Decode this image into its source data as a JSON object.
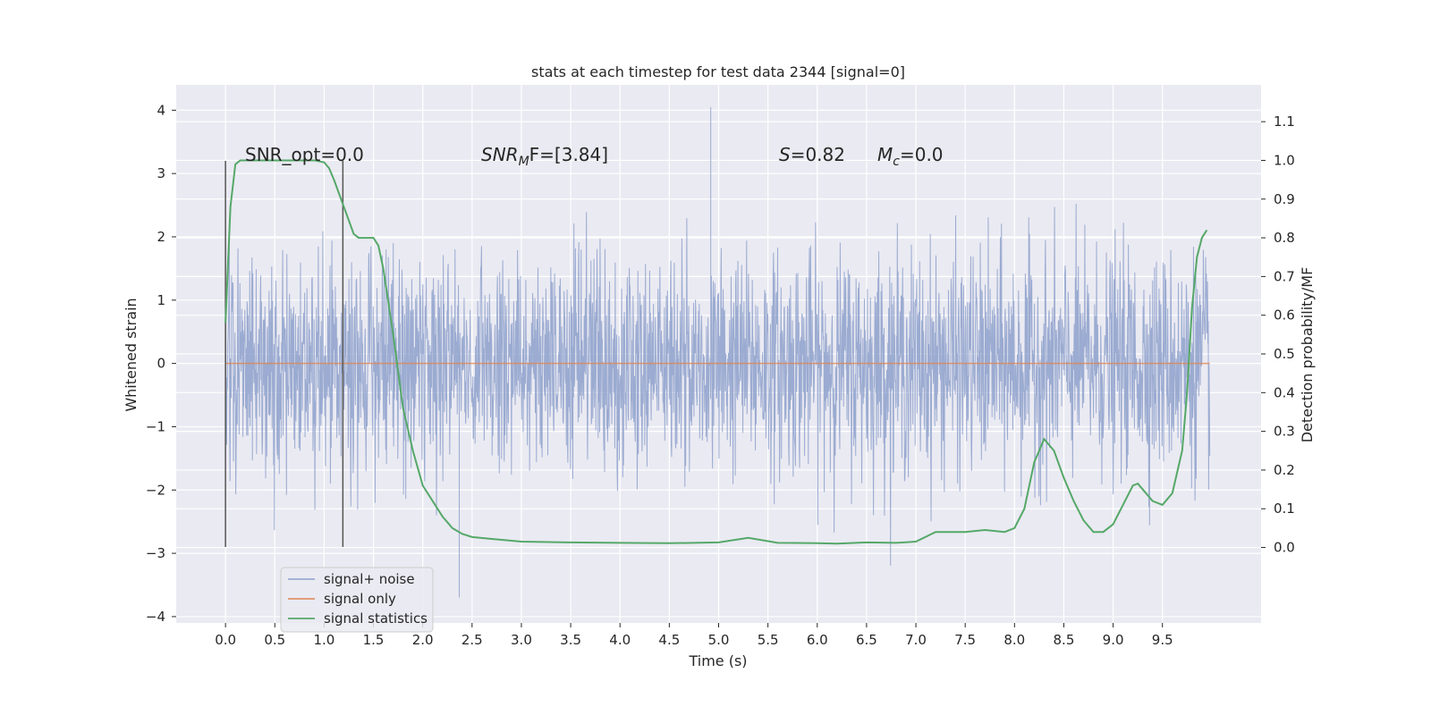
{
  "chart_data": {
    "type": "line",
    "title": "stats at each timestep for test data 2344 [signal=0]",
    "xlabel": "Time (s)",
    "ylabel_left": "Whitened strain",
    "ylabel_right": "Detection probability/MF",
    "xlim": [
      -0.5,
      10.5
    ],
    "ylim_left": [
      -4.1,
      4.4
    ],
    "ylim_right": [
      -0.195,
      1.195
    ],
    "x_ticks": [
      "0.0",
      "0.5",
      "1.0",
      "1.5",
      "2.0",
      "2.5",
      "3.0",
      "3.5",
      "4.0",
      "4.5",
      "5.0",
      "5.5",
      "6.0",
      "6.5",
      "7.0",
      "7.5",
      "8.0",
      "8.5",
      "9.0",
      "9.5"
    ],
    "y_left_ticks": [
      "−4",
      "−3",
      "−2",
      "−1",
      "0",
      "1",
      "2",
      "3",
      "4"
    ],
    "y_right_ticks": [
      "0.0",
      "0.1",
      "0.2",
      "0.3",
      "0.4",
      "0.5",
      "0.6",
      "0.7",
      "0.8",
      "0.9",
      "1.0",
      "1.1"
    ],
    "grid": true,
    "legend_position": "lower-left",
    "colors": {
      "noise": "#8da0cb",
      "signal": "#dd8452",
      "stats": "#55a868",
      "background": "#eaeaf2",
      "grid": "#ffffff",
      "vline": "#555555"
    },
    "annotations": {
      "snr_opt": "SNR_opt=0.0",
      "snr_mf_prefix": "SNR",
      "snr_mf_sub": "M",
      "snr_mf_suffix": "F=[3.84]",
      "s_var": "S",
      "s_value": "=0.82",
      "mc_var": "M",
      "mc_sub": "c",
      "mc_value": "=0.0"
    },
    "vertical_lines": [
      0.0,
      1.19
    ],
    "vertical_line_range": [
      -2.9,
      3.2
    ],
    "noise_envelope": {
      "x_range": [
        0.0,
        9.98
      ],
      "dense_band": [
        -1.2,
        1.4
      ],
      "typical_extreme": [
        -2.2,
        2.6
      ],
      "max_value": 4.05,
      "min_value": -3.7
    },
    "series": [
      {
        "name": "signal+ noise",
        "kind": "noise"
      },
      {
        "name": "signal only",
        "kind": "flat",
        "x": [
          0.0,
          9.98
        ],
        "y": [
          0.0,
          0.0
        ]
      },
      {
        "name": "signal statistics",
        "kind": "line",
        "axis": "right",
        "x": [
          0.0,
          0.05,
          0.1,
          0.15,
          0.2,
          0.3,
          0.5,
          0.7,
          0.9,
          1.0,
          1.05,
          1.1,
          1.2,
          1.3,
          1.35,
          1.4,
          1.5,
          1.55,
          1.6,
          1.7,
          1.8,
          1.9,
          2.0,
          2.1,
          2.2,
          2.3,
          2.4,
          2.5,
          2.7,
          3.0,
          3.5,
          4.0,
          4.5,
          5.0,
          5.3,
          5.6,
          6.0,
          6.2,
          6.5,
          6.8,
          7.0,
          7.2,
          7.5,
          7.7,
          7.9,
          8.0,
          8.1,
          8.2,
          8.3,
          8.4,
          8.5,
          8.6,
          8.7,
          8.8,
          8.9,
          9.0,
          9.1,
          9.2,
          9.25,
          9.3,
          9.4,
          9.5,
          9.6,
          9.7,
          9.75,
          9.8,
          9.85,
          9.9,
          9.95
        ],
        "y": [
          0.58,
          0.88,
          0.99,
          1.0,
          1.0,
          1.0,
          1.0,
          1.0,
          1.0,
          0.995,
          0.98,
          0.95,
          0.88,
          0.81,
          0.8,
          0.8,
          0.8,
          0.78,
          0.72,
          0.55,
          0.36,
          0.25,
          0.16,
          0.12,
          0.08,
          0.05,
          0.035,
          0.027,
          0.022,
          0.015,
          0.013,
          0.012,
          0.011,
          0.013,
          0.025,
          0.012,
          0.011,
          0.01,
          0.013,
          0.012,
          0.015,
          0.04,
          0.04,
          0.045,
          0.04,
          0.05,
          0.1,
          0.22,
          0.28,
          0.25,
          0.18,
          0.12,
          0.07,
          0.04,
          0.04,
          0.06,
          0.11,
          0.16,
          0.165,
          0.15,
          0.12,
          0.11,
          0.14,
          0.25,
          0.4,
          0.62,
          0.75,
          0.8,
          0.82
        ]
      }
    ]
  }
}
